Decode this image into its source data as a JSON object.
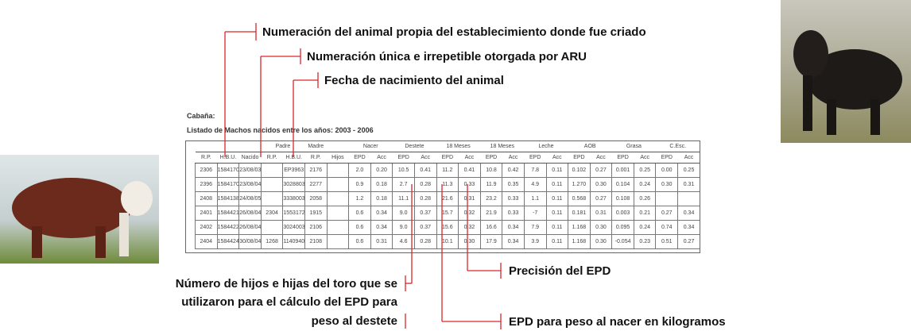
{
  "annotations": [
    "Numeración del animal propia del establecimiento donde fue criado",
    "Numeración única e irrepetible otorgada por ARU",
    "Fecha de nacimiento del animal",
    "Precisión del EPD",
    "EPD para peso al nacer en kilogramos"
  ],
  "left_note": {
    "lines": [
      "Número de hijos e hijas del toro que se",
      "utilizaron para el cálculo del EPD para",
      "peso al destete"
    ]
  },
  "table": {
    "title": "Cabaña:",
    "subtitle": "Listado de Machos nacidos entre los años: 2003 - 2006",
    "group_headers": [
      null,
      null,
      null,
      "Padre",
      "Madre",
      null,
      "Nacer",
      "Destete",
      "18 Meses",
      "18 Meses",
      "Leche",
      "AOB",
      "Grasa",
      "C.Esc."
    ],
    "headers": [
      "R.P.",
      "H.B.U.",
      "Nacido",
      "R.P.",
      "H.B.U.",
      "R.P.",
      "Hijos",
      "EPD",
      "Acc",
      "EPD",
      "Acc",
      "EPD",
      "Acc",
      "EPD",
      "Acc",
      "EPD",
      "Acc",
      "EPD",
      "Acc",
      "EPD",
      "Acc",
      "EPD",
      "Acc"
    ],
    "rows": [
      [
        "2306",
        "1584170",
        "23/08/03",
        null,
        "EP3963",
        "2176",
        null,
        "2.0",
        "0.20",
        "10.5",
        "0.41",
        "11.2",
        "0.41",
        "10.8",
        "0.42",
        "7.8",
        "0.11",
        "0.102",
        "0.27",
        "0.001",
        "0.25",
        "0.00",
        "0.25"
      ],
      [
        "2396",
        "1584170",
        "23/08/04",
        null,
        "3028803",
        "2277",
        null,
        "0.9",
        "0.18",
        "2.7",
        "0.28",
        "11.3",
        "0.33",
        "11.9",
        "0.35",
        "4.9",
        "0.11",
        "1.270",
        "0.30",
        "0.104",
        "0.24",
        "0.30",
        "0.31"
      ],
      [
        "2408",
        "1584138",
        "24/08/05",
        null,
        "3338003",
        "2058",
        null,
        "1.2",
        "0.18",
        "11.1",
        "0.28",
        "21.6",
        "0.31",
        "23.2",
        "0.33",
        "1.1",
        "0.11",
        "0.568",
        "0.27",
        "0.108",
        "0.26",
        null,
        null
      ],
      [
        "2401",
        "1584421",
        "26/08/04",
        "2304",
        "1553172",
        "1915",
        null,
        "0.6",
        "0.34",
        "9.0",
        "0.37",
        "15.7",
        "0.32",
        "21.9",
        "0.33",
        "-7",
        "0.11",
        "0.181",
        "0.31",
        "0.003",
        "0.21",
        "0.27",
        "0.34"
      ],
      [
        "2402",
        "1584422",
        "26/08/04",
        null,
        "3024003",
        "2106",
        null,
        "0.6",
        "0.34",
        "9.0",
        "0.37",
        "15.6",
        "0.32",
        "16.6",
        "0.34",
        "7.9",
        "0.11",
        "1.168",
        "0.30",
        "0.095",
        "0.24",
        "0.74",
        "0.34"
      ],
      [
        "2404",
        "1584424",
        "30/08/04",
        "1268",
        "1140940",
        "2108",
        null,
        "0.6",
        "0.31",
        "4.6",
        "0.28",
        "10.1",
        "0.30",
        "17.9",
        "0.34",
        "3.9",
        "0.11",
        "1.168",
        "0.30",
        "-0.054",
        "0.23",
        "0.51",
        "0.27"
      ]
    ]
  }
}
